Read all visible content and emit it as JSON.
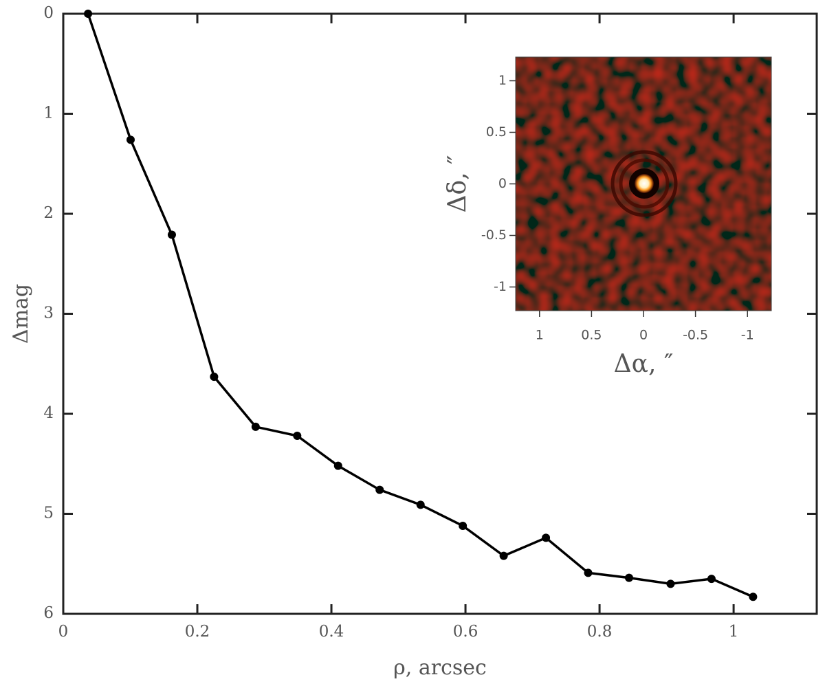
{
  "chart_data": [
    {
      "type": "line",
      "x_label": "ρ, arcsec",
      "y_label": "Δmag",
      "x": [
        0.037,
        0.1005,
        0.162,
        0.225,
        0.287,
        0.349,
        0.41,
        0.472,
        0.533,
        0.596,
        0.657,
        0.72,
        0.783,
        0.844,
        0.906,
        0.967,
        1.029
      ],
      "values": [
        0,
        1.26,
        2.21,
        3.63,
        4.13,
        4.22,
        4.52,
        4.76,
        4.91,
        5.12,
        5.42,
        5.24,
        5.59,
        5.64,
        5.7,
        5.65,
        5.83
      ],
      "color": "#000000",
      "xlim": [
        0,
        1.124
      ],
      "xticks": [
        0,
        0.2,
        0.4,
        0.6,
        0.8,
        1
      ],
      "ylim": [
        0,
        6
      ],
      "yticks": [
        0,
        1,
        2,
        3,
        4,
        5,
        6
      ],
      "y_reversed": true
    },
    {
      "type": "image",
      "x_label": "Δα, ″",
      "y_label": "Δδ, ″",
      "xlim": [
        1.23,
        -1.23
      ],
      "xticks": [
        1,
        0.5,
        0,
        -0.5,
        -1
      ],
      "ylim": [
        -1.23,
        1.23
      ],
      "yticks": [
        1,
        0.5,
        0,
        -0.5,
        -1
      ]
    }
  ]
}
